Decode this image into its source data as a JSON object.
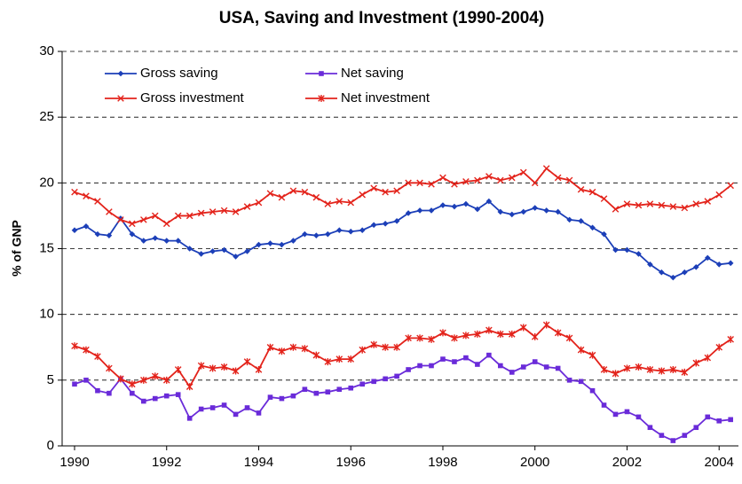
{
  "chart_data": {
    "type": "line",
    "title": "USA, Saving and Investment (1990-2004)",
    "ylabel": "% of GNP",
    "x": [
      1990,
      1990.25,
      1990.5,
      1990.75,
      1991,
      1991.25,
      1991.5,
      1991.75,
      1992,
      1992.25,
      1992.5,
      1992.75,
      1993,
      1993.25,
      1993.5,
      1993.75,
      1994,
      1994.25,
      1994.5,
      1994.75,
      1995,
      1995.25,
      1995.5,
      1995.75,
      1996,
      1996.25,
      1996.5,
      1996.75,
      1997,
      1997.25,
      1997.5,
      1997.75,
      1998,
      1998.25,
      1998.5,
      1998.75,
      1999,
      1999.25,
      1999.5,
      1999.75,
      2000,
      2000.25,
      2000.5,
      2000.75,
      2001,
      2001.25,
      2001.5,
      2001.75,
      2002,
      2002.25,
      2002.5,
      2002.75,
      2003,
      2003.25,
      2003.5,
      2003.75,
      2004,
      2004.25
    ],
    "series": [
      {
        "name": "Gross saving",
        "color": "#1c3fb8",
        "marker": "diamond",
        "values": [
          16.4,
          16.7,
          16.1,
          16.0,
          17.3,
          16.1,
          15.6,
          15.8,
          15.6,
          15.6,
          15.0,
          14.6,
          14.8,
          14.9,
          14.4,
          14.8,
          15.3,
          15.4,
          15.3,
          15.6,
          16.1,
          16.0,
          16.1,
          16.4,
          16.3,
          16.4,
          16.8,
          16.9,
          17.1,
          17.7,
          17.9,
          17.9,
          18.3,
          18.2,
          18.4,
          18.0,
          18.6,
          17.8,
          17.6,
          17.8,
          18.1,
          17.9,
          17.8,
          17.2,
          17.1,
          16.6,
          16.1,
          14.9,
          14.9,
          14.6,
          13.8,
          13.2,
          12.8,
          13.2,
          13.6,
          14.3,
          13.8,
          13.9
        ]
      },
      {
        "name": "Net saving",
        "color": "#6a2bd9",
        "marker": "square",
        "values": [
          4.7,
          5.0,
          4.2,
          4.0,
          5.1,
          4.0,
          3.4,
          3.6,
          3.8,
          3.9,
          2.1,
          2.8,
          2.9,
          3.1,
          2.4,
          2.9,
          2.5,
          3.7,
          3.6,
          3.8,
          4.3,
          4.0,
          4.1,
          4.3,
          4.4,
          4.7,
          4.9,
          5.1,
          5.3,
          5.8,
          6.1,
          6.1,
          6.6,
          6.4,
          6.7,
          6.2,
          6.9,
          6.1,
          5.6,
          6.0,
          6.4,
          6.0,
          5.9,
          5.0,
          4.9,
          4.2,
          3.1,
          2.4,
          2.6,
          2.2,
          1.4,
          0.8,
          0.4,
          0.8,
          1.4,
          2.2,
          1.9,
          2.0
        ]
      },
      {
        "name": "Gross investment",
        "color": "#e3231b",
        "marker": "x",
        "values": [
          19.3,
          19.0,
          18.6,
          17.8,
          17.2,
          16.9,
          17.2,
          17.5,
          16.9,
          17.5,
          17.5,
          17.7,
          17.8,
          17.9,
          17.8,
          18.2,
          18.5,
          19.2,
          18.9,
          19.4,
          19.3,
          18.9,
          18.4,
          18.6,
          18.5,
          19.1,
          19.6,
          19.3,
          19.4,
          20.0,
          20.0,
          19.9,
          20.4,
          19.9,
          20.1,
          20.2,
          20.5,
          20.2,
          20.4,
          20.8,
          20.0,
          21.1,
          20.4,
          20.2,
          19.5,
          19.3,
          18.8,
          18.0,
          18.4,
          18.3,
          18.4,
          18.3,
          18.2,
          18.1,
          18.4,
          18.6,
          19.1,
          19.8
        ]
      },
      {
        "name": "Net investment",
        "color": "#e3231b",
        "marker": "asterisk",
        "values": [
          7.6,
          7.3,
          6.8,
          5.9,
          5.1,
          4.7,
          5.0,
          5.3,
          5.0,
          5.8,
          4.5,
          6.1,
          5.9,
          6.0,
          5.7,
          6.4,
          5.8,
          7.5,
          7.2,
          7.5,
          7.4,
          6.9,
          6.4,
          6.6,
          6.6,
          7.3,
          7.7,
          7.5,
          7.5,
          8.2,
          8.2,
          8.1,
          8.6,
          8.2,
          8.4,
          8.5,
          8.8,
          8.5,
          8.5,
          9.0,
          8.3,
          9.2,
          8.6,
          8.2,
          7.3,
          6.9,
          5.8,
          5.5,
          5.9,
          6.0,
          5.8,
          5.7,
          5.8,
          5.6,
          6.3,
          6.7,
          7.5,
          8.1
        ]
      }
    ],
    "xlim": [
      1989.73,
      2004.42
    ],
    "xticks": [
      1990,
      1992,
      1994,
      1996,
      1998,
      2000,
      2002,
      2004
    ],
    "ylim": [
      0,
      30
    ],
    "yticks": [
      0,
      5,
      10,
      15,
      20,
      25,
      30
    ],
    "grid": true,
    "legend": "top-left"
  }
}
